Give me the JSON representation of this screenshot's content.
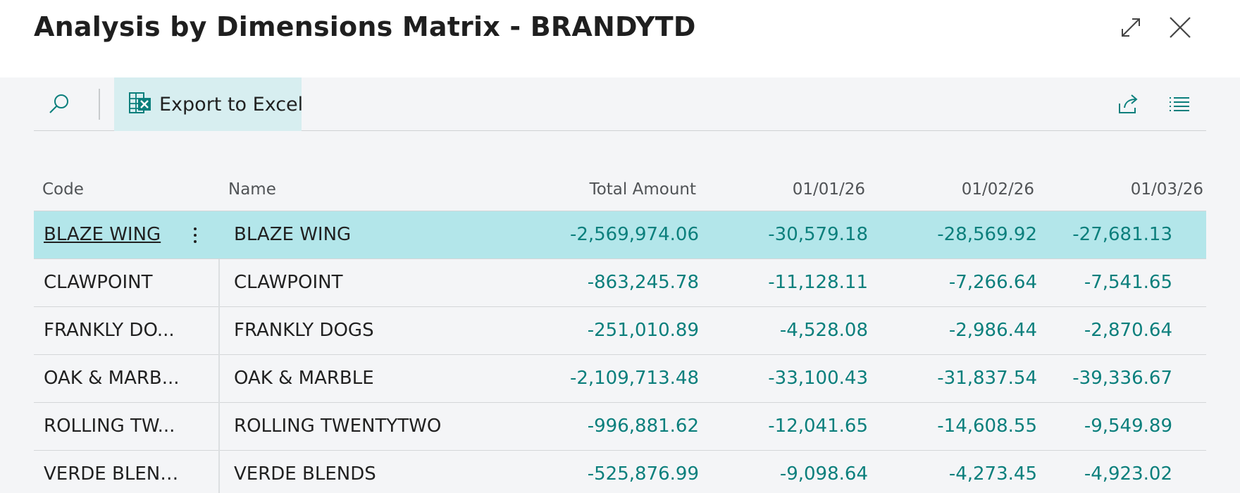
{
  "window": {
    "title": "Analysis by Dimensions Matrix - BRANDYTD",
    "expand_icon": "expand-icon",
    "close_icon": "close-icon"
  },
  "toolbar": {
    "search_icon": "search-icon",
    "export_label": "Export to Excel",
    "export_icon": "excel-export-icon",
    "share_icon": "share-icon",
    "list_icon": "list-view-icon"
  },
  "colors": {
    "accent": "#0b7f7c",
    "selected_row": "#b3e6ea",
    "export_button_bg": "#d7eef0",
    "content_bg": "#f4f5f7"
  },
  "table": {
    "columns": {
      "code": "Code",
      "name": "Name",
      "total": "Total Amount",
      "p1": "01/01/26",
      "p2": "01/02/26",
      "p3": "01/03/26"
    },
    "rows": [
      {
        "code": "BLAZE WING",
        "name": "BLAZE WING",
        "total": "-2,569,974.06",
        "p1": "-30,579.18",
        "p2": "-28,569.92",
        "p3": "-27,681.13"
      },
      {
        "code": "CLAWPOINT",
        "name": "CLAWPOINT",
        "total": "-863,245.78",
        "p1": "-11,128.11",
        "p2": "-7,266.64",
        "p3": "-7,541.65"
      },
      {
        "code": "FRANKLY DO...",
        "name": "FRANKLY DOGS",
        "total": "-251,010.89",
        "p1": "-4,528.08",
        "p2": "-2,986.44",
        "p3": "-2,870.64"
      },
      {
        "code": "OAK & MARB...",
        "name": "OAK & MARBLE",
        "total": "-2,109,713.48",
        "p1": "-33,100.43",
        "p2": "-31,837.54",
        "p3": "-39,336.67"
      },
      {
        "code": "ROLLING TW...",
        "name": "ROLLING TWENTYTWO",
        "total": "-996,881.62",
        "p1": "-12,041.65",
        "p2": "-14,608.55",
        "p3": "-9,549.89"
      },
      {
        "code": "VERDE BLENDS",
        "name": "VERDE BLENDS",
        "total": "-525,876.99",
        "p1": "-9,098.64",
        "p2": "-4,273.45",
        "p3": "-4,923.02"
      }
    ]
  }
}
